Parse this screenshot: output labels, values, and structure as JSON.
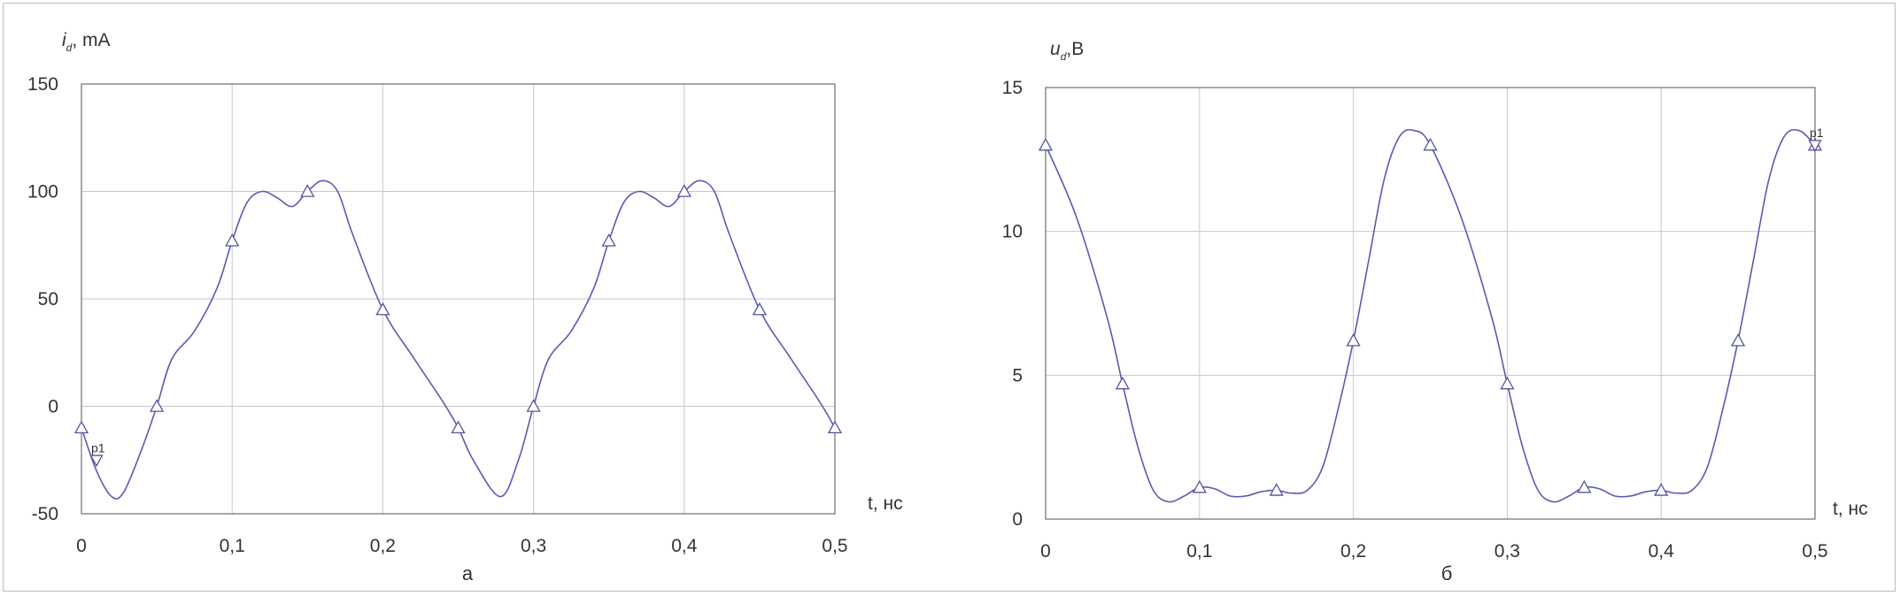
{
  "chart_data": [
    {
      "type": "line",
      "caption": "а",
      "ylabel_main": "i",
      "ylabel_sub": "d",
      "ylabel_unit": ", mA",
      "xlabel": "t, нс",
      "ylim": [
        -50,
        150
      ],
      "xlim": [
        0,
        0.5
      ],
      "yticks": [
        "-50",
        "0",
        "50",
        "100",
        "150"
      ],
      "ytick_values": [
        -50,
        0,
        50,
        100,
        150
      ],
      "xticks": [
        "0",
        "0,1",
        "0,2",
        "0,3",
        "0,4",
        "0,5"
      ],
      "xtick_values": [
        0,
        0.1,
        0.2,
        0.3,
        0.4,
        0.5
      ],
      "grid": true,
      "line_color": "#5a5ab4",
      "curve": {
        "x": [
          0,
          0.01,
          0.02,
          0.028,
          0.04,
          0.05,
          0.06,
          0.075,
          0.09,
          0.1,
          0.11,
          0.12,
          0.13,
          0.14,
          0.15,
          0.16,
          0.17,
          0.18,
          0.2,
          0.22,
          0.24,
          0.25,
          0.26,
          0.278,
          0.29,
          0.3,
          0.31,
          0.325,
          0.34,
          0.35,
          0.36,
          0.37,
          0.38,
          0.39,
          0.4,
          0.41,
          0.42,
          0.43,
          0.45,
          0.47,
          0.49,
          0.5
        ],
        "y": [
          -10,
          -30,
          -42,
          -40,
          -20,
          0,
          22,
          35,
          55,
          77,
          95,
          100,
          97,
          93,
          100,
          105,
          100,
          80,
          45,
          23,
          2,
          -10,
          -25,
          -42,
          -25,
          0,
          22,
          35,
          55,
          77,
          95,
          100,
          97,
          93,
          100,
          105,
          100,
          80,
          45,
          23,
          2,
          -10
        ]
      },
      "markers": {
        "x": [
          0,
          0.05,
          0.1,
          0.15,
          0.2,
          0.25,
          0.3,
          0.35,
          0.4,
          0.45,
          0.5
        ],
        "y": [
          -10,
          0,
          77,
          100,
          45,
          -10,
          0,
          77,
          100,
          45,
          -10
        ]
      },
      "probe": {
        "label": "p1",
        "x": 0.01,
        "y": -25
      }
    },
    {
      "type": "line",
      "caption": "б",
      "ylabel_main": "u",
      "ylabel_sub": "d",
      "ylabel_unit": ",В",
      "xlabel": "t, нс",
      "ylim": [
        0,
        15
      ],
      "xlim": [
        0,
        0.5
      ],
      "yticks": [
        "0",
        "5",
        "10",
        "15"
      ],
      "ytick_values": [
        0,
        5,
        10,
        15
      ],
      "xticks": [
        "0",
        "0,1",
        "0,2",
        "0,3",
        "0,4",
        "0,5"
      ],
      "xtick_values": [
        0,
        0.1,
        0.2,
        0.3,
        0.4,
        0.5
      ],
      "grid": true,
      "line_color": "#5a5ab4",
      "curve": {
        "x": [
          0,
          0.02,
          0.04,
          0.05,
          0.06,
          0.07,
          0.08,
          0.09,
          0.1,
          0.11,
          0.12,
          0.13,
          0.14,
          0.15,
          0.16,
          0.17,
          0.18,
          0.19,
          0.2,
          0.21,
          0.22,
          0.23,
          0.24,
          0.25,
          0.27,
          0.29,
          0.3,
          0.31,
          0.32,
          0.33,
          0.34,
          0.35,
          0.36,
          0.37,
          0.38,
          0.39,
          0.4,
          0.41,
          0.42,
          0.43,
          0.44,
          0.45,
          0.46,
          0.47,
          0.48,
          0.49,
          0.5
        ],
        "y": [
          13,
          10.5,
          7,
          4.7,
          2.5,
          1,
          0.6,
          0.8,
          1.1,
          1.05,
          0.8,
          0.8,
          0.95,
          1,
          0.9,
          1,
          1.8,
          3.8,
          6.2,
          9,
          11.8,
          13.3,
          13.5,
          13,
          10.5,
          7,
          4.7,
          2.5,
          1,
          0.6,
          0.8,
          1.1,
          1.05,
          0.8,
          0.8,
          0.95,
          1,
          0.9,
          1,
          1.8,
          3.8,
          6.2,
          9,
          11.8,
          13.3,
          13.5,
          13
        ]
      },
      "markers": {
        "x": [
          0,
          0.05,
          0.1,
          0.15,
          0.2,
          0.25,
          0.3,
          0.35,
          0.4,
          0.45,
          0.5
        ],
        "y": [
          13,
          4.7,
          1.1,
          1,
          6.2,
          13,
          4.7,
          1.1,
          1,
          6.2,
          13
        ]
      },
      "probe": {
        "label": "p1",
        "x": 0.5,
        "y": 13
      }
    }
  ]
}
